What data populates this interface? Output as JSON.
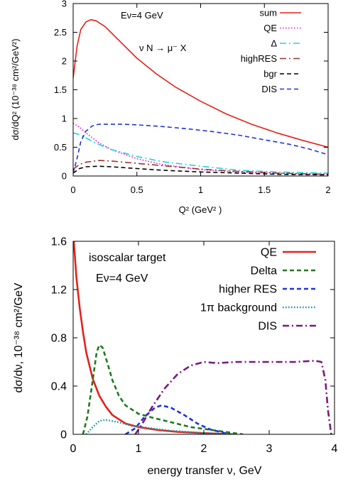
{
  "chart_data": [
    {
      "type": "line",
      "title": "",
      "annotations": [
        "Eν=4 GeV",
        "ν N → μ⁻ X"
      ],
      "xlabel": "Q² (GeV² )",
      "ylabel": "dσ/dQ² (10⁻³⁸ cm²/GeV²)",
      "xlim": [
        0,
        2
      ],
      "ylim": [
        0,
        3
      ],
      "x_ticks": [
        "0",
        "0.5",
        "1",
        "1.5",
        "2"
      ],
      "y_ticks": [
        "0",
        "0.5",
        "1",
        "1.5",
        "2",
        "2.5",
        "3"
      ],
      "legend_position": "top-right",
      "series": [
        {
          "name": "sum",
          "color": "#e3221a",
          "dash": "solid",
          "points": [
            [
              0,
              1.7
            ],
            [
              0.03,
              2.25
            ],
            [
              0.06,
              2.55
            ],
            [
              0.1,
              2.68
            ],
            [
              0.14,
              2.72
            ],
            [
              0.18,
              2.7
            ],
            [
              0.25,
              2.6
            ],
            [
              0.35,
              2.38
            ],
            [
              0.5,
              2.05
            ],
            [
              0.65,
              1.78
            ],
            [
              0.8,
              1.55
            ],
            [
              1.0,
              1.3
            ],
            [
              1.2,
              1.08
            ],
            [
              1.4,
              0.9
            ],
            [
              1.6,
              0.75
            ],
            [
              1.8,
              0.62
            ],
            [
              2.0,
              0.5
            ]
          ]
        },
        {
          "name": "QE",
          "color": "#e020e0",
          "dash": "dotted",
          "points": [
            [
              0,
              0.92
            ],
            [
              0.05,
              0.85
            ],
            [
              0.1,
              0.75
            ],
            [
              0.2,
              0.58
            ],
            [
              0.3,
              0.46
            ],
            [
              0.5,
              0.3
            ],
            [
              0.7,
              0.2
            ],
            [
              1.0,
              0.11
            ],
            [
              1.3,
              0.07
            ],
            [
              1.6,
              0.05
            ],
            [
              2.0,
              0.03
            ]
          ]
        },
        {
          "name": "Δ",
          "color": "#22d2e2",
          "dash": "dashdot",
          "points": [
            [
              0,
              0.75
            ],
            [
              0.05,
              0.72
            ],
            [
              0.1,
              0.66
            ],
            [
              0.2,
              0.55
            ],
            [
              0.3,
              0.46
            ],
            [
              0.5,
              0.34
            ],
            [
              0.7,
              0.25
            ],
            [
              1.0,
              0.17
            ],
            [
              1.3,
              0.1
            ],
            [
              1.6,
              0.07
            ],
            [
              2.0,
              0.05
            ]
          ]
        },
        {
          "name": "highRES",
          "color": "#a0302a",
          "dash": "dashdot",
          "points": [
            [
              0,
              0.12
            ],
            [
              0.05,
              0.2
            ],
            [
              0.1,
              0.24
            ],
            [
              0.2,
              0.27
            ],
            [
              0.3,
              0.26
            ],
            [
              0.5,
              0.22
            ],
            [
              0.7,
              0.18
            ],
            [
              1.0,
              0.12
            ],
            [
              1.3,
              0.08
            ],
            [
              1.6,
              0.05
            ],
            [
              2.0,
              0.03
            ]
          ]
        },
        {
          "name": "bgr",
          "color": "#000000",
          "dash": "dashed",
          "points": [
            [
              0,
              0.05
            ],
            [
              0.05,
              0.13
            ],
            [
              0.1,
              0.16
            ],
            [
              0.2,
              0.17
            ],
            [
              0.3,
              0.16
            ],
            [
              0.5,
              0.13
            ],
            [
              0.7,
              0.1
            ],
            [
              1.0,
              0.07
            ],
            [
              1.3,
              0.05
            ],
            [
              1.6,
              0.03
            ],
            [
              2.0,
              0.02
            ]
          ]
        },
        {
          "name": "DIS",
          "color": "#2035d6",
          "dash": "dashed",
          "points": [
            [
              0,
              0.05
            ],
            [
              0.03,
              0.3
            ],
            [
              0.06,
              0.6
            ],
            [
              0.1,
              0.78
            ],
            [
              0.15,
              0.87
            ],
            [
              0.2,
              0.9
            ],
            [
              0.3,
              0.9
            ],
            [
              0.4,
              0.9
            ],
            [
              0.5,
              0.89
            ],
            [
              0.7,
              0.86
            ],
            [
              0.9,
              0.82
            ],
            [
              1.1,
              0.77
            ],
            [
              1.3,
              0.71
            ],
            [
              1.5,
              0.63
            ],
            [
              1.7,
              0.55
            ],
            [
              1.85,
              0.47
            ],
            [
              2.0,
              0.37
            ]
          ]
        }
      ]
    },
    {
      "type": "line",
      "title": "",
      "annotations": [
        "isoscalar target",
        "Eν=4 GeV"
      ],
      "xlabel": "energy transfer  ν, GeV",
      "ylabel": "dσ/dν,  10⁻³⁸ cm²/GeV",
      "xlim": [
        0,
        4
      ],
      "ylim": [
        0,
        1.6
      ],
      "x_ticks": [
        "0",
        "1",
        "2",
        "3",
        "4"
      ],
      "y_ticks": [
        "0",
        "0.4",
        "0.8",
        "1.2",
        "1.6"
      ],
      "legend_position": "top-right",
      "series": [
        {
          "name": "QE",
          "color": "#e3221a",
          "dash": "solid",
          "points": [
            [
              0.01,
              1.6
            ],
            [
              0.05,
              1.3
            ],
            [
              0.1,
              1.05
            ],
            [
              0.15,
              0.85
            ],
            [
              0.2,
              0.68
            ],
            [
              0.3,
              0.46
            ],
            [
              0.4,
              0.32
            ],
            [
              0.5,
              0.23
            ],
            [
              0.6,
              0.16
            ],
            [
              0.8,
              0.09
            ],
            [
              1.0,
              0.06
            ],
            [
              1.3,
              0.035
            ],
            [
              1.6,
              0.02
            ],
            [
              2.0,
              0.01
            ],
            [
              2.5,
              0.0
            ]
          ]
        },
        {
          "name": "Delta",
          "color": "#1f7a1f",
          "dash": "dashed",
          "points": [
            [
              0.15,
              0.0
            ],
            [
              0.22,
              0.15
            ],
            [
              0.3,
              0.45
            ],
            [
              0.36,
              0.68
            ],
            [
              0.4,
              0.74
            ],
            [
              0.45,
              0.72
            ],
            [
              0.52,
              0.6
            ],
            [
              0.6,
              0.45
            ],
            [
              0.7,
              0.32
            ],
            [
              0.8,
              0.24
            ],
            [
              1.0,
              0.17
            ],
            [
              1.2,
              0.14
            ],
            [
              1.5,
              0.1
            ],
            [
              1.8,
              0.06
            ],
            [
              2.2,
              0.03
            ],
            [
              2.6,
              0.0
            ]
          ]
        },
        {
          "name": "higher RES",
          "color": "#2035d6",
          "dash": "dashed",
          "points": [
            [
              0.8,
              0.0
            ],
            [
              0.95,
              0.05
            ],
            [
              1.1,
              0.15
            ],
            [
              1.25,
              0.22
            ],
            [
              1.35,
              0.24
            ],
            [
              1.5,
              0.22
            ],
            [
              1.7,
              0.16
            ],
            [
              1.9,
              0.09
            ],
            [
              2.1,
              0.04
            ],
            [
              2.4,
              0.0
            ]
          ]
        },
        {
          "name": "1π background",
          "color": "#1a9aaa",
          "dash": "dotted",
          "points": [
            [
              0.2,
              0.0
            ],
            [
              0.3,
              0.06
            ],
            [
              0.4,
              0.11
            ],
            [
              0.5,
              0.12
            ],
            [
              0.7,
              0.1
            ],
            [
              0.9,
              0.07
            ],
            [
              1.2,
              0.05
            ],
            [
              1.5,
              0.03
            ],
            [
              2.0,
              0.01
            ],
            [
              2.5,
              0.0
            ]
          ]
        },
        {
          "name": "DIS",
          "color": "#7a1a80",
          "dash": "dashdot",
          "points": [
            [
              0.95,
              0.0
            ],
            [
              1.05,
              0.08
            ],
            [
              1.2,
              0.22
            ],
            [
              1.4,
              0.38
            ],
            [
              1.6,
              0.5
            ],
            [
              1.8,
              0.57
            ],
            [
              2.0,
              0.6
            ],
            [
              2.2,
              0.59
            ],
            [
              2.5,
              0.6
            ],
            [
              2.8,
              0.6
            ],
            [
              3.1,
              0.6
            ],
            [
              3.4,
              0.6
            ],
            [
              3.7,
              0.61
            ],
            [
              3.8,
              0.6
            ],
            [
              3.86,
              0.45
            ],
            [
              3.9,
              0.2
            ],
            [
              3.95,
              0.0
            ]
          ]
        }
      ]
    }
  ]
}
